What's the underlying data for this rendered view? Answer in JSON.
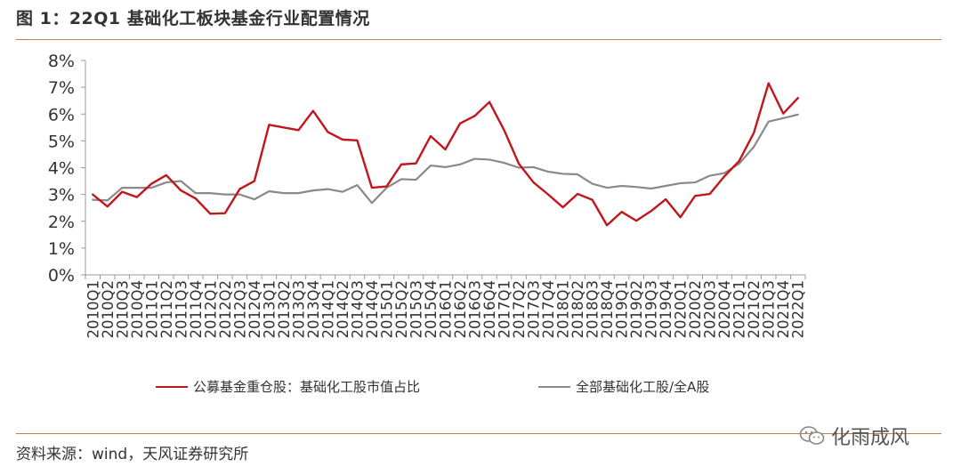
{
  "figure": {
    "title": "图 1：22Q1 基础化工板块基金行业配置情况",
    "source": "资料来源：wind，天风证券研究所",
    "watermark": "化雨成风",
    "watermark_icon": "wechat-icon"
  },
  "chart_data": {
    "type": "line",
    "x": [
      "2010Q1",
      "2010Q2",
      "2010Q3",
      "2010Q4",
      "2011Q1",
      "2011Q2",
      "2011Q3",
      "2011Q4",
      "2012Q1",
      "2012Q2",
      "2012Q3",
      "2012Q4",
      "2013Q1",
      "2013Q2",
      "2013Q3",
      "2013Q4",
      "2014Q1",
      "2014Q2",
      "2014Q3",
      "2014Q4",
      "2015Q1",
      "2015Q2",
      "2015Q3",
      "2015Q4",
      "2016Q1",
      "2016Q2",
      "2016Q3",
      "2016Q4",
      "2017Q1",
      "2017Q2",
      "2017Q3",
      "2017Q4",
      "2018Q1",
      "2018Q2",
      "2018Q3",
      "2018Q4",
      "2019Q1",
      "2019Q2",
      "2019Q3",
      "2019Q4",
      "2020Q1",
      "2020Q2",
      "2020Q3",
      "2020Q4",
      "2021Q1",
      "2021Q2",
      "2021Q3",
      "2021Q4",
      "2022Q1"
    ],
    "y_ticks": [
      "0%",
      "1%",
      "2%",
      "3%",
      "4%",
      "5%",
      "6%",
      "7%",
      "8%"
    ],
    "ylim": [
      0,
      8
    ],
    "grid": false,
    "legend_position": "bottom",
    "series": [
      {
        "name": "公募基金重仓股：基础化工股市值占比",
        "color": "#c0161c",
        "values": [
          3.0,
          2.55,
          3.1,
          2.9,
          3.4,
          3.72,
          3.15,
          2.85,
          2.28,
          2.3,
          3.2,
          3.5,
          5.6,
          5.5,
          5.4,
          6.12,
          5.33,
          5.05,
          5.02,
          3.25,
          3.3,
          4.12,
          4.16,
          5.18,
          4.68,
          5.65,
          5.93,
          6.45,
          5.4,
          4.15,
          3.45,
          3.0,
          2.52,
          3.02,
          2.8,
          1.85,
          2.35,
          2.02,
          2.38,
          2.82,
          2.15,
          2.95,
          3.02,
          3.68,
          4.25,
          5.3,
          7.15,
          6.02,
          6.6
        ]
      },
      {
        "name": "全部基础化工股/全A股",
        "color": "#8a8a8a",
        "values": [
          2.8,
          2.78,
          3.25,
          3.25,
          3.25,
          3.45,
          3.5,
          3.05,
          3.05,
          3.0,
          3.0,
          2.82,
          3.12,
          3.05,
          3.05,
          3.15,
          3.2,
          3.1,
          3.35,
          2.68,
          3.25,
          3.57,
          3.55,
          4.08,
          4.02,
          4.12,
          4.33,
          4.3,
          4.18,
          4.0,
          4.02,
          3.85,
          3.77,
          3.75,
          3.4,
          3.25,
          3.32,
          3.28,
          3.22,
          3.32,
          3.42,
          3.45,
          3.7,
          3.8,
          4.15,
          4.78,
          5.72,
          5.85,
          5.98
        ]
      }
    ]
  }
}
